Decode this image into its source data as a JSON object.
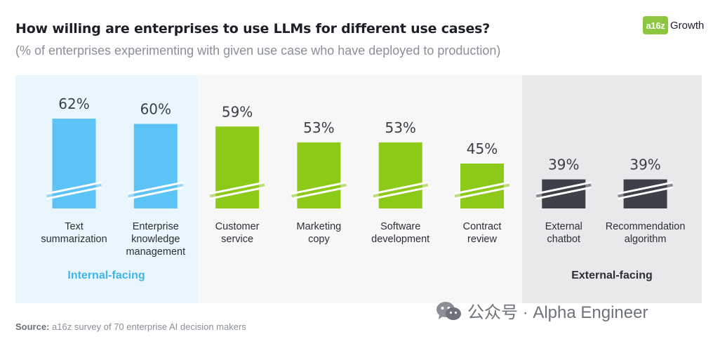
{
  "title": "How willing are enterprises to use LLMs for different use cases?",
  "subtitle": "(% of enterprises experimenting with given use case who have deployed to production)",
  "logo": {
    "badge": "a16z",
    "text": "Growth",
    "badge_color": "#8cc63f"
  },
  "source": {
    "label": "Source:",
    "text": "a16z survey of 70 enterprise AI decision makers"
  },
  "watermark": {
    "text": "公众号 · Alpha Engineer",
    "icon": "wechat-icon"
  },
  "groups": [
    {
      "label": "Internal-facing",
      "color": "#3eb5f0"
    },
    {
      "label": "External-facing",
      "color": "#2b2f36"
    }
  ],
  "chart_data": {
    "type": "bar",
    "categories": [
      "Text\nsummarization",
      "Enterprise\nknowledge\nmanagement",
      "Customer\nservice",
      "Marketing\ncopy",
      "Software\ndevelopment",
      "Contract\nreview",
      "External\nchatbot",
      "Recommendation\nalgorithm"
    ],
    "values": [
      62,
      60,
      59,
      53,
      53,
      45,
      39,
      39
    ],
    "value_labels": [
      "62%",
      "60%",
      "59%",
      "53%",
      "53%",
      "45%",
      "39%",
      "39%"
    ],
    "bar_colors": [
      "#5bc3f5",
      "#5bc3f5",
      "#8cc919",
      "#8cc919",
      "#8cc919",
      "#8cc919",
      "#3d4048",
      "#3d4048"
    ],
    "y_axis_break": true,
    "grid": false,
    "title": "How willing are enterprises to use LLMs for different use cases?",
    "xlabel": "",
    "ylabel": ""
  }
}
